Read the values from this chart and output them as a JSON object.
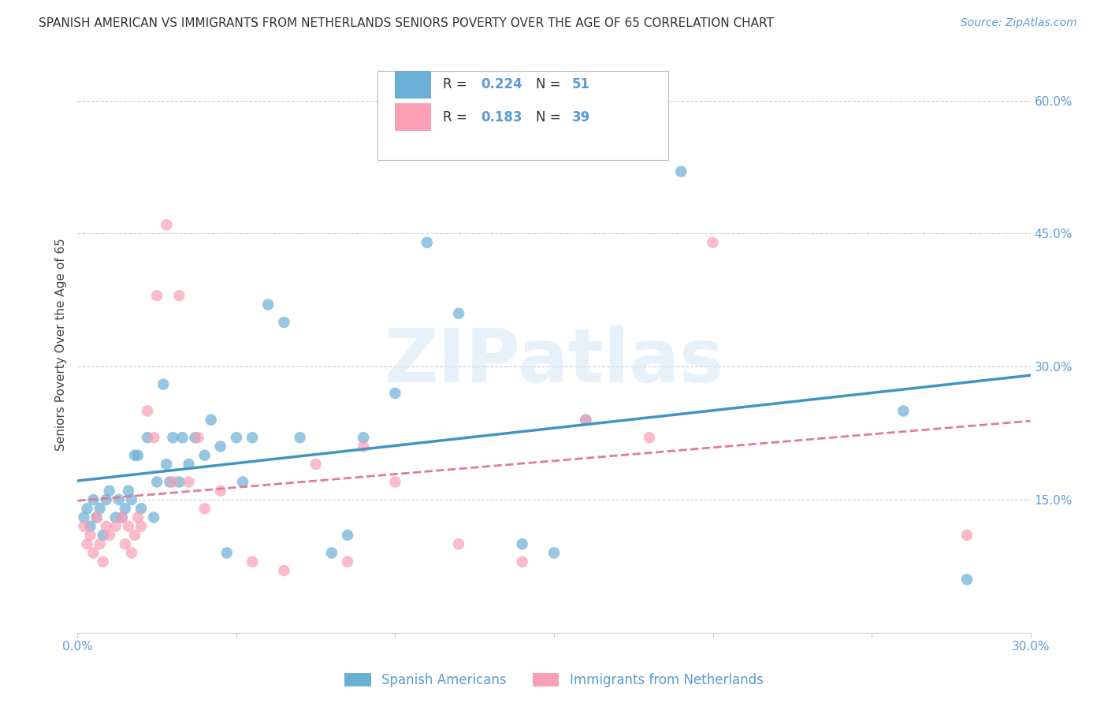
{
  "title": "SPANISH AMERICAN VS IMMIGRANTS FROM NETHERLANDS SENIORS POVERTY OVER THE AGE OF 65 CORRELATION CHART",
  "source": "Source: ZipAtlas.com",
  "ylabel": "Seniors Poverty Over the Age of 65",
  "xlim": [
    0.0,
    0.3
  ],
  "ylim": [
    0.0,
    0.65
  ],
  "x_ticks": [
    0.0,
    0.05,
    0.1,
    0.15,
    0.2,
    0.25,
    0.3
  ],
  "x_tick_labels": [
    "0.0%",
    "",
    "",
    "",
    "",
    "",
    "30.0%"
  ],
  "y_ticks_right": [
    0.15,
    0.3,
    0.45,
    0.6
  ],
  "y_tick_labels_right": [
    "15.0%",
    "30.0%",
    "45.0%",
    "60.0%"
  ],
  "blue_color": "#6baed6",
  "pink_color": "#fa9fb5",
  "line_blue": "#4393c3",
  "line_pink": "#e07b9a",
  "R_blue": 0.224,
  "N_blue": 51,
  "R_pink": 0.183,
  "N_pink": 39,
  "legend_label_blue": "Spanish Americans",
  "legend_label_pink": "Immigrants from Netherlands",
  "watermark": "ZIPatlas",
  "blue_x": [
    0.002,
    0.003,
    0.004,
    0.005,
    0.006,
    0.007,
    0.008,
    0.009,
    0.01,
    0.012,
    0.013,
    0.014,
    0.015,
    0.016,
    0.017,
    0.018,
    0.019,
    0.02,
    0.022,
    0.024,
    0.025,
    0.027,
    0.028,
    0.029,
    0.03,
    0.032,
    0.033,
    0.035,
    0.037,
    0.04,
    0.042,
    0.045,
    0.047,
    0.05,
    0.052,
    0.055,
    0.06,
    0.065,
    0.07,
    0.08,
    0.085,
    0.09,
    0.1,
    0.11,
    0.12,
    0.14,
    0.15,
    0.16,
    0.19,
    0.26,
    0.28
  ],
  "blue_y": [
    0.13,
    0.14,
    0.12,
    0.15,
    0.13,
    0.14,
    0.11,
    0.15,
    0.16,
    0.13,
    0.15,
    0.13,
    0.14,
    0.16,
    0.15,
    0.2,
    0.2,
    0.14,
    0.22,
    0.13,
    0.17,
    0.28,
    0.19,
    0.17,
    0.22,
    0.17,
    0.22,
    0.19,
    0.22,
    0.2,
    0.24,
    0.21,
    0.09,
    0.22,
    0.17,
    0.22,
    0.37,
    0.35,
    0.22,
    0.09,
    0.11,
    0.22,
    0.27,
    0.44,
    0.36,
    0.1,
    0.09,
    0.24,
    0.52,
    0.25,
    0.06
  ],
  "pink_x": [
    0.002,
    0.003,
    0.004,
    0.005,
    0.006,
    0.007,
    0.008,
    0.009,
    0.01,
    0.012,
    0.014,
    0.015,
    0.016,
    0.017,
    0.018,
    0.019,
    0.02,
    0.022,
    0.024,
    0.025,
    0.028,
    0.03,
    0.032,
    0.035,
    0.038,
    0.04,
    0.045,
    0.055,
    0.065,
    0.075,
    0.085,
    0.09,
    0.1,
    0.12,
    0.14,
    0.16,
    0.18,
    0.2,
    0.28
  ],
  "pink_y": [
    0.12,
    0.1,
    0.11,
    0.09,
    0.13,
    0.1,
    0.08,
    0.12,
    0.11,
    0.12,
    0.13,
    0.1,
    0.12,
    0.09,
    0.11,
    0.13,
    0.12,
    0.25,
    0.22,
    0.38,
    0.46,
    0.17,
    0.38,
    0.17,
    0.22,
    0.14,
    0.16,
    0.08,
    0.07,
    0.19,
    0.08,
    0.21,
    0.17,
    0.1,
    0.08,
    0.24,
    0.22,
    0.44,
    0.11
  ]
}
